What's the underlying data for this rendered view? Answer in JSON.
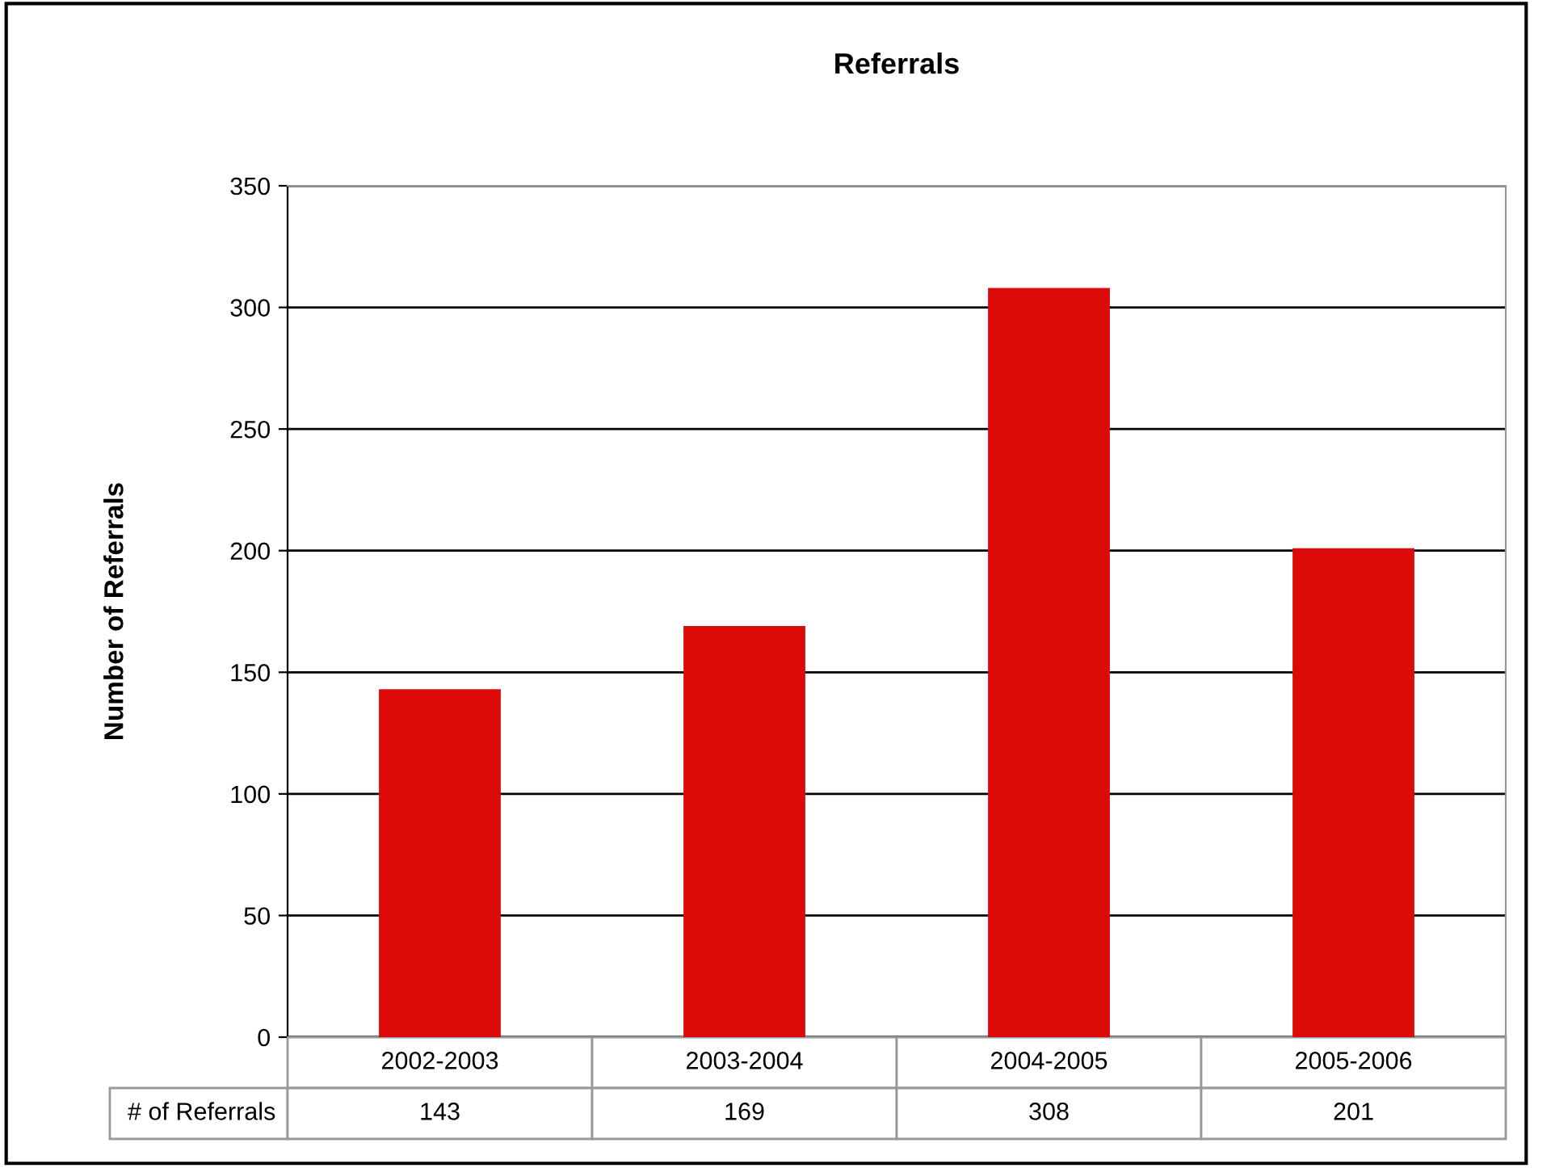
{
  "chart_data": {
    "type": "bar",
    "title": "Referrals",
    "ylabel": "Number of Referrals",
    "categories": [
      "2002-2003",
      "2003-2004",
      "2004-2005",
      "2005-2006"
    ],
    "series": [
      {
        "name": "# of Referrals",
        "color": "#dd0a0a",
        "values": [
          143,
          169,
          308,
          201
        ]
      }
    ],
    "ylim": [
      0,
      350
    ],
    "yticks": [
      0,
      50,
      100,
      150,
      200,
      250,
      300,
      350
    ],
    "grid": "y",
    "data_labels": true
  }
}
